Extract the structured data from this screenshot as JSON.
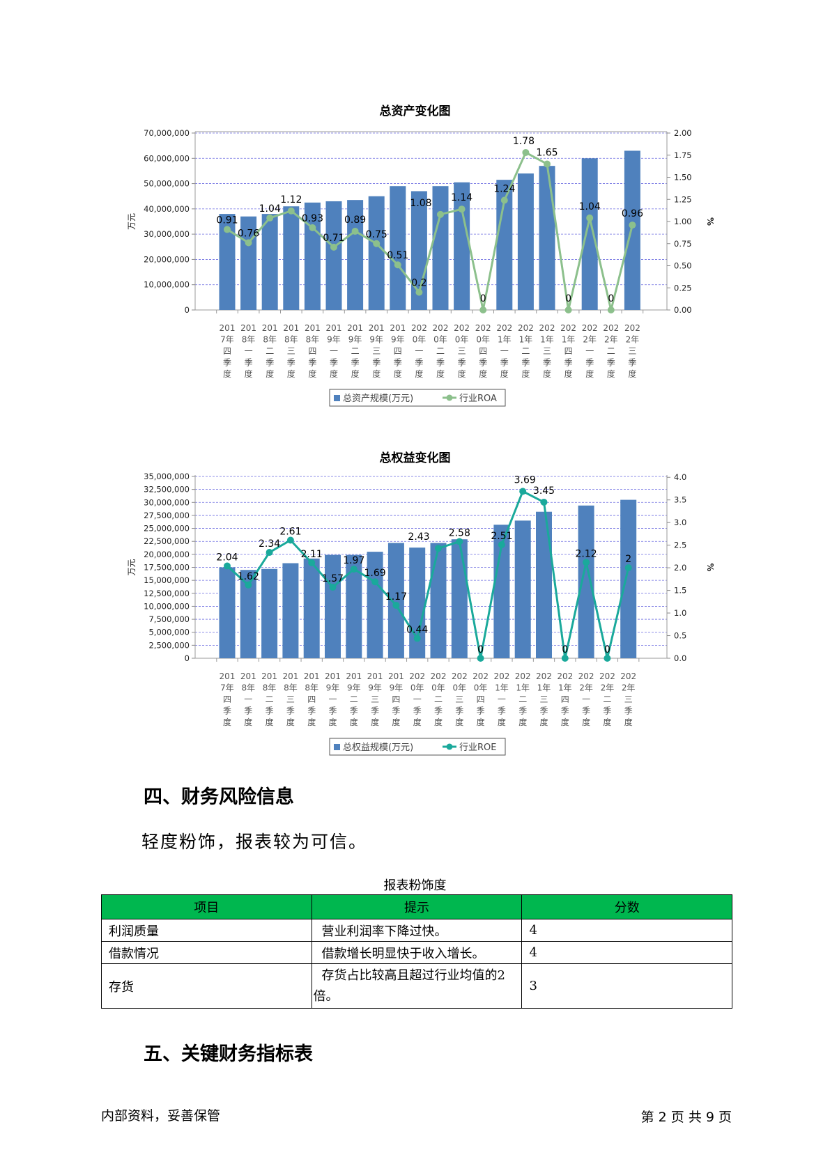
{
  "charts": {
    "assets": {
      "title": "总资产变化图",
      "ylabel_left": "万元",
      "ylabel_right": "%",
      "legend_bar": "总资产规模(万元)",
      "legend_line": "行业ROA",
      "line_color": "#8cc08c"
    },
    "equity": {
      "title": "总权益变化图",
      "ylabel_left": "万元",
      "ylabel_right": "%",
      "legend_bar": "总权益规模(万元)",
      "legend_line": "行业ROE",
      "line_color": "#1aa99b"
    }
  },
  "chart_data": [
    {
      "type": "bar",
      "title": "总资产变化图",
      "xlabel": "",
      "ylabel": "万元",
      "y2label": "%",
      "categories": [
        "2017年四季度",
        "2018年一季度",
        "2018年二季度",
        "2018年三季度",
        "2018年四季度",
        "2019年一季度",
        "2019年二季度",
        "2019年三季度",
        "2019年四季度",
        "2020年一季度",
        "2020年二季度",
        "2020年三季度",
        "2020年四季度",
        "2021年一季度",
        "2021年二季度",
        "2021年三季度",
        "2021年四季度",
        "2022年一季度",
        "2022年二季度",
        "2022年三季度"
      ],
      "category_lines": [
        [
          "201",
          "7年",
          "四",
          "季",
          "度"
        ],
        [
          "201",
          "8年",
          "一",
          "季",
          "度"
        ],
        [
          "201",
          "8年",
          "二",
          "季",
          "度"
        ],
        [
          "201",
          "8年",
          "三",
          "季",
          "度"
        ],
        [
          "201",
          "8年",
          "四",
          "季",
          "度"
        ],
        [
          "201",
          "9年",
          "一",
          "季",
          "度"
        ],
        [
          "201",
          "9年",
          "二",
          "季",
          "度"
        ],
        [
          "201",
          "9年",
          "三",
          "季",
          "度"
        ],
        [
          "201",
          "9年",
          "四",
          "季",
          "度"
        ],
        [
          "202",
          "0年",
          "一",
          "季",
          "度"
        ],
        [
          "202",
          "0年",
          "二",
          "季",
          "度"
        ],
        [
          "202",
          "0年",
          "三",
          "季",
          "度"
        ],
        [
          "202",
          "0年",
          "四",
          "季",
          "度"
        ],
        [
          "202",
          "1年",
          "一",
          "季",
          "度"
        ],
        [
          "202",
          "1年",
          "二",
          "季",
          "度"
        ],
        [
          "202",
          "1年",
          "三",
          "季",
          "度"
        ],
        [
          "202",
          "1年",
          "四",
          "季",
          "度"
        ],
        [
          "202",
          "2年",
          "一",
          "季",
          "度"
        ],
        [
          "202",
          "2年",
          "二",
          "季",
          "度"
        ],
        [
          "202",
          "2年",
          "三",
          "季",
          "度"
        ]
      ],
      "series": [
        {
          "name": "总资产规模(万元)",
          "kind": "bar",
          "axis": "left",
          "values": [
            38000000,
            37000000,
            38000000,
            41000000,
            42500000,
            43000000,
            43500000,
            45000000,
            49000000,
            47000000,
            49000000,
            50500000,
            0,
            51500000,
            54000000,
            57000000,
            0,
            60000000,
            0,
            63000000
          ]
        },
        {
          "name": "行业ROA",
          "kind": "line",
          "axis": "right",
          "values": [
            0.91,
            0.76,
            1.04,
            1.12,
            0.93,
            0.71,
            0.89,
            0.75,
            0.51,
            0.2,
            1.08,
            1.14,
            0,
            1.24,
            1.78,
            1.65,
            0,
            1.04,
            0,
            0.96
          ],
          "labels": [
            "0.91",
            "0.76",
            "1.04",
            "1.12",
            "0.93",
            "0.71",
            "0.89",
            "0.75",
            "0.51",
            "0.2",
            "1.08",
            "1.14",
            "0",
            "1.24",
            "1.78",
            "1.65",
            "0",
            "1.04",
            "0",
            "0.96"
          ]
        }
      ],
      "ylim": [
        0,
        70000000
      ],
      "yticks": [
        "0",
        "10,000,000",
        "20,000,000",
        "30,000,000",
        "40,000,000",
        "50,000,000",
        "60,000,000",
        "70,000,000"
      ],
      "y2lim": [
        0,
        2.0
      ],
      "y2ticks": [
        "0.00",
        "0.25",
        "0.50",
        "0.75",
        "1.00",
        "1.25",
        "1.50",
        "1.75",
        "2.00"
      ],
      "grid": true,
      "legend": "bottom"
    },
    {
      "type": "bar",
      "title": "总权益变化图",
      "xlabel": "",
      "ylabel": "万元",
      "y2label": "%",
      "categories": [
        "2017年四季度",
        "2018年一季度",
        "2018年二季度",
        "2018年三季度",
        "2018年四季度",
        "2019年一季度",
        "2019年二季度",
        "2019年三季度",
        "2019年四季度",
        "2020年一季度",
        "2020年二季度",
        "2020年三季度",
        "2020年四季度",
        "2021年一季度",
        "2021年二季度",
        "2021年三季度",
        "2021年四季度",
        "2022年一季度",
        "2022年二季度",
        "2022年三季度"
      ],
      "category_lines": [
        [
          "201",
          "7年",
          "四",
          "季",
          "度"
        ],
        [
          "201",
          "8年",
          "一",
          "季",
          "度"
        ],
        [
          "201",
          "8年",
          "二",
          "季",
          "度"
        ],
        [
          "201",
          "8年",
          "三",
          "季",
          "度"
        ],
        [
          "201",
          "8年",
          "四",
          "季",
          "度"
        ],
        [
          "201",
          "9年",
          "一",
          "季",
          "度"
        ],
        [
          "201",
          "9年",
          "二",
          "季",
          "度"
        ],
        [
          "201",
          "9年",
          "三",
          "季",
          "度"
        ],
        [
          "201",
          "9年",
          "四",
          "季",
          "度"
        ],
        [
          "202",
          "0年",
          "一",
          "季",
          "度"
        ],
        [
          "202",
          "0年",
          "二",
          "季",
          "度"
        ],
        [
          "202",
          "0年",
          "三",
          "季",
          "度"
        ],
        [
          "202",
          "0年",
          "四",
          "季",
          "度"
        ],
        [
          "202",
          "1年",
          "一",
          "季",
          "度"
        ],
        [
          "202",
          "1年",
          "二",
          "季",
          "度"
        ],
        [
          "202",
          "1年",
          "三",
          "季",
          "度"
        ],
        [
          "202",
          "1年",
          "四",
          "季",
          "度"
        ],
        [
          "202",
          "2年",
          "一",
          "季",
          "度"
        ],
        [
          "202",
          "2年",
          "二",
          "季",
          "度"
        ],
        [
          "202",
          "2年",
          "三",
          "季",
          "度"
        ]
      ],
      "series": [
        {
          "name": "总权益规模(万元)",
          "kind": "bar",
          "axis": "left",
          "values": [
            17500000,
            17000000,
            17200000,
            18300000,
            19200000,
            19900000,
            19900000,
            20500000,
            22200000,
            21300000,
            22200000,
            22900000,
            0,
            25700000,
            26500000,
            28200000,
            0,
            29400000,
            0,
            30500000
          ]
        },
        {
          "name": "行业ROE",
          "kind": "line",
          "axis": "right",
          "values": [
            2.04,
            1.62,
            2.34,
            2.61,
            2.11,
            1.57,
            1.97,
            1.69,
            1.17,
            0.44,
            2.43,
            2.58,
            0,
            2.51,
            3.69,
            3.45,
            0,
            2.12,
            0,
            2.0
          ],
          "labels": [
            "2.04",
            "1.62",
            "2.34",
            "2.61",
            "2.11",
            "1.57",
            "1.97",
            "1.69",
            "1.17",
            "0.44",
            "2.43",
            "2.58",
            "0",
            "2.51",
            "3.69",
            "3.45",
            "0",
            "2.12",
            "0",
            "2"
          ]
        }
      ],
      "ylim": [
        0,
        35000000
      ],
      "yticks": [
        "0",
        "2,500,000",
        "5,000,000",
        "7,500,000",
        "10,000,000",
        "12,500,000",
        "15,000,000",
        "17,500,000",
        "20,000,000",
        "22,500,000",
        "25,000,000",
        "27,500,000",
        "30,000,000",
        "32,500,000",
        "35,000,000"
      ],
      "y2lim": [
        0,
        4.25
      ],
      "y2ticks": [
        "0.0",
        "0.5",
        "1.0",
        "1.5",
        "2.0",
        "2.5",
        "3.0",
        "3.5",
        "4.0"
      ],
      "y2tick_values": [
        0,
        0.5,
        1.0,
        1.5,
        2.0,
        2.5,
        3.0,
        3.5,
        4.0
      ],
      "grid": true,
      "legend": "bottom"
    }
  ],
  "section4": {
    "heading": "四、财务风险信息",
    "summary": "轻度粉饰，报表较为可信。",
    "table": {
      "caption": "报表粉饰度",
      "headers": [
        "项目",
        "提示",
        "分数"
      ],
      "rows": [
        {
          "item": "利润质量",
          "hint": "营业利润率下降过快。",
          "score": "4"
        },
        {
          "item": "借款情况",
          "hint": "借款增长明显快于收入增长。",
          "score": "4"
        },
        {
          "item": "存货",
          "hint_line1": "存货占比较高且超过行业均值的2",
          "hint_line2": "倍。",
          "score": "3"
        }
      ],
      "header_color": "#00b74f"
    }
  },
  "section5": {
    "heading": "五、关键财务指标表"
  },
  "footer": {
    "left": "内部资料，妥善保管",
    "right": "第 2 页  共 9 页"
  }
}
